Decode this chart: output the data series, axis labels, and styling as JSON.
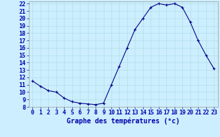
{
  "x": [
    0,
    1,
    2,
    3,
    4,
    5,
    6,
    7,
    8,
    9,
    10,
    11,
    12,
    13,
    14,
    15,
    16,
    17,
    18,
    19,
    20,
    21,
    22,
    23
  ],
  "y": [
    11.5,
    10.8,
    10.2,
    10.0,
    9.2,
    8.7,
    8.5,
    8.4,
    8.3,
    8.5,
    11.0,
    13.5,
    16.0,
    18.5,
    20.0,
    21.5,
    22.0,
    21.8,
    22.0,
    21.5,
    19.5,
    17.0,
    15.0,
    13.2
  ],
  "xlabel": "Graphe des températures (°c)",
  "ylim_min": 8,
  "ylim_max": 22,
  "xlim_min": 0,
  "xlim_max": 23,
  "yticks": [
    8,
    9,
    10,
    11,
    12,
    13,
    14,
    15,
    16,
    17,
    18,
    19,
    20,
    21,
    22
  ],
  "xticks": [
    0,
    1,
    2,
    3,
    4,
    5,
    6,
    7,
    8,
    9,
    10,
    11,
    12,
    13,
    14,
    15,
    16,
    17,
    18,
    19,
    20,
    21,
    22,
    23
  ],
  "line_color": "#00008b",
  "marker_color": "#00008b",
  "bg_color": "#cceeff",
  "grid_color": "#aadddd",
  "tick_label_color": "#0000aa",
  "xlabel_color": "#0000aa",
  "xlabel_fontsize": 7,
  "tick_fontsize": 6
}
